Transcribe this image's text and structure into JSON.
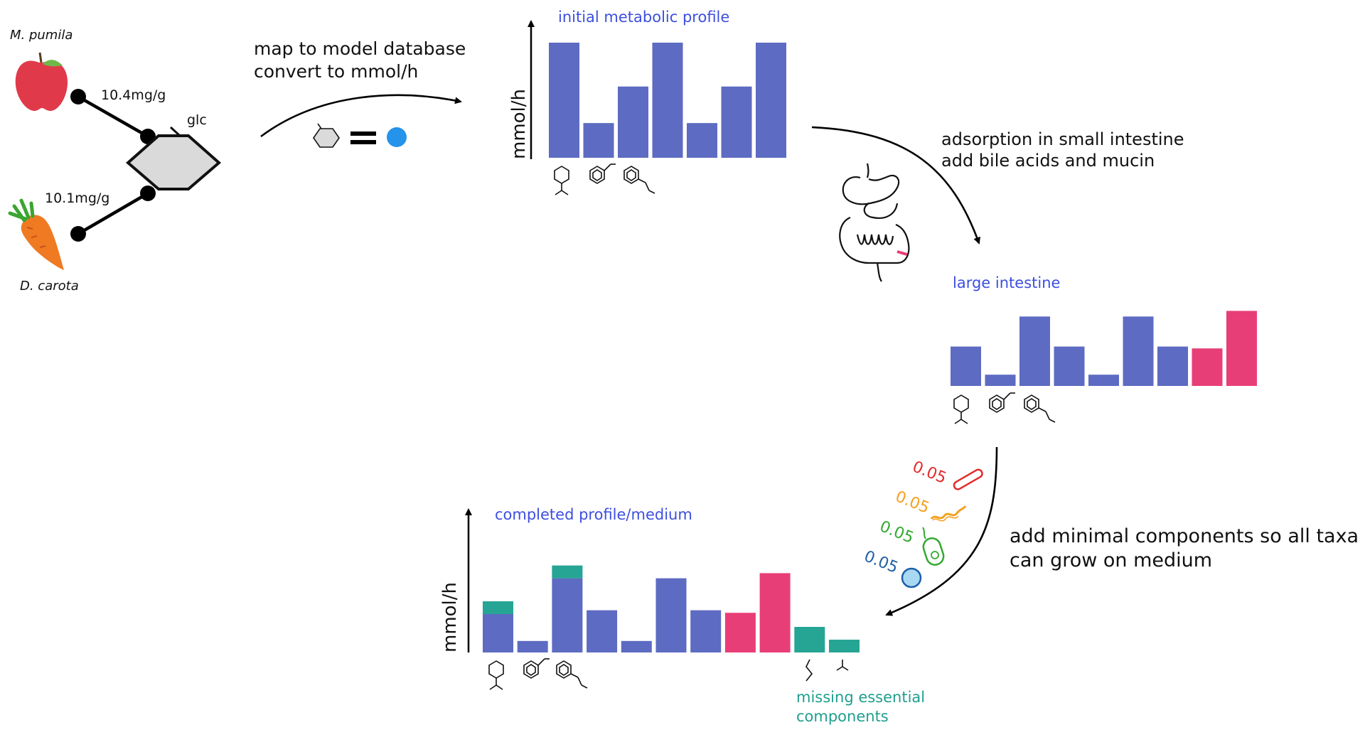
{
  "foods": {
    "apple_label": "M. pumila",
    "carrot_label": "D. carota",
    "apple_amount": "10.4mg/g",
    "carrot_amount": "10.1mg/g",
    "compound_label": "glc"
  },
  "steps": {
    "map_line1": "map to model database",
    "map_line2": "convert to mmol/h",
    "adsorption_line1": "adsorption in small intestine",
    "adsorption_line2": "add bile acids and mucin",
    "minimal_line1": "add minimal components so all taxa",
    "minimal_line2": "can grow on medium"
  },
  "abundances": [
    "0.05",
    "0.05",
    "0.05",
    "0.05"
  ],
  "colors": {
    "diet": "#5d6bc2",
    "host": "#e83e78",
    "missing": "#26a594",
    "label_blue": "#3d4fe0",
    "taxa": [
      "#e32b2b",
      "#f4a020",
      "#33a832",
      "#1f5fa8"
    ]
  },
  "icons": [
    "apple-icon",
    "carrot-icon",
    "glucose-hexagon-icon",
    "intestine-icon",
    "bacteria-icons"
  ],
  "chart_data": [
    {
      "type": "bar",
      "title": "initial metabolic profile",
      "ylabel": "mmol/h",
      "series": [
        {
          "values": [
            6.3,
            1.9,
            3.9,
            6.3,
            1.9,
            3.9,
            6.3
          ]
        }
      ],
      "ylim": [
        0,
        7
      ]
    },
    {
      "type": "bar",
      "title": "large intestine",
      "ylabel": "",
      "series": [
        {
          "values": [
            2.1,
            0.6,
            3.7,
            2.1,
            0.6,
            3.7,
            2.1,
            2.0,
            4.0
          ]
        }
      ],
      "categories_group": [
        "diet",
        "diet",
        "diet",
        "diet",
        "diet",
        "diet",
        "diet",
        "host",
        "host"
      ],
      "ylim": [
        0,
        5
      ]
    },
    {
      "type": "bar",
      "title": "completed profile/medium",
      "ylabel": "mmol/h",
      "annotation": "missing essential components",
      "series": [
        {
          "values": [
            3.0,
            0.9,
            5.8,
            3.3,
            0.9,
            5.8,
            3.3,
            3.1,
            6.2,
            0,
            0
          ]
        },
        {
          "values": [
            1.0,
            0,
            1.0,
            0,
            0,
            0,
            0,
            0,
            0,
            2.0,
            1.0
          ]
        }
      ],
      "categories_group": [
        "diet",
        "diet",
        "diet",
        "diet",
        "diet",
        "diet",
        "diet",
        "host",
        "host",
        "missing",
        "missing"
      ],
      "ylim": [
        0,
        8
      ]
    }
  ]
}
